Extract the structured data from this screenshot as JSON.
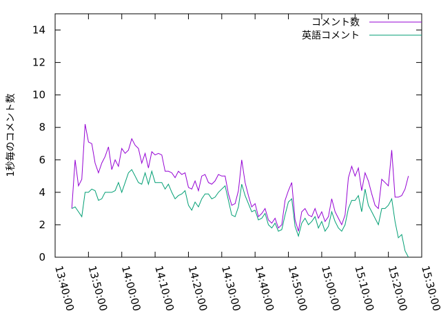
{
  "chart_data": {
    "type": "line",
    "title": "",
    "xlabel": "",
    "ylabel": "1秒毎のコメント数",
    "ylim": [
      0,
      15
    ],
    "yticks": [
      0,
      2,
      4,
      6,
      8,
      10,
      12,
      14
    ],
    "xlim": [
      "13:40:00",
      "15:30:00"
    ],
    "xticks": [
      "13:40:00",
      "13:50:00",
      "14:00:00",
      "14:10:00",
      "14:20:00",
      "14:30:00",
      "14:40:00",
      "14:50:00",
      "15:00:00",
      "15:10:00",
      "15:20:00",
      "15:30:00"
    ],
    "grid": false,
    "legend": "top-right",
    "x": [
      "13:45:00",
      "13:46:00",
      "13:47:00",
      "13:48:00",
      "13:49:00",
      "13:50:00",
      "13:51:00",
      "13:52:00",
      "13:53:00",
      "13:54:00",
      "13:55:00",
      "13:56:00",
      "13:57:00",
      "13:58:00",
      "13:59:00",
      "14:00:00",
      "14:01:00",
      "14:02:00",
      "14:03:00",
      "14:04:00",
      "14:05:00",
      "14:06:00",
      "14:07:00",
      "14:08:00",
      "14:09:00",
      "14:10:00",
      "14:11:00",
      "14:12:00",
      "14:13:00",
      "14:14:00",
      "14:15:00",
      "14:16:00",
      "14:17:00",
      "14:18:00",
      "14:19:00",
      "14:20:00",
      "14:21:00",
      "14:22:00",
      "14:23:00",
      "14:24:00",
      "14:25:00",
      "14:26:00",
      "14:27:00",
      "14:28:00",
      "14:29:00",
      "14:30:00",
      "14:31:00",
      "14:32:00",
      "14:33:00",
      "14:34:00",
      "14:35:00",
      "14:36:00",
      "14:37:00",
      "14:38:00",
      "14:39:00",
      "14:40:00",
      "14:41:00",
      "14:42:00",
      "14:43:00",
      "14:44:00",
      "14:45:00",
      "14:46:00",
      "14:47:00",
      "14:48:00",
      "14:49:00",
      "14:50:00",
      "14:51:00",
      "14:52:00",
      "14:53:00",
      "14:54:00",
      "14:55:00",
      "14:56:00",
      "14:57:00",
      "14:58:00",
      "14:59:00",
      "15:00:00",
      "15:01:00",
      "15:02:00",
      "15:03:00",
      "15:04:00",
      "15:05:00",
      "15:06:00",
      "15:07:00",
      "15:08:00",
      "15:09:00",
      "15:10:00",
      "15:11:00",
      "15:12:00",
      "15:13:00",
      "15:14:00",
      "15:15:00",
      "15:16:00",
      "15:17:00",
      "15:18:00",
      "15:19:00",
      "15:20:00",
      "15:21:00",
      "15:22:00",
      "15:23:00",
      "15:24:00",
      "15:25:00",
      "15:26:00"
    ],
    "series": [
      {
        "name": "コメント数",
        "color": "#9400d3",
        "values": [
          3.0,
          6.0,
          4.4,
          4.8,
          8.2,
          7.1,
          7.0,
          5.8,
          5.2,
          5.8,
          6.2,
          6.8,
          5.4,
          6.0,
          5.6,
          6.7,
          6.4,
          6.6,
          7.3,
          6.9,
          6.7,
          5.8,
          6.4,
          5.5,
          6.5,
          6.3,
          6.4,
          6.3,
          5.3,
          5.3,
          5.2,
          4.9,
          5.3,
          5.1,
          5.2,
          4.3,
          4.2,
          4.7,
          4.1,
          5.0,
          5.1,
          4.6,
          4.5,
          4.7,
          5.1,
          5.0,
          5.0,
          3.9,
          3.2,
          3.3,
          4.1,
          6.0,
          4.6,
          3.8,
          3.1,
          3.3,
          2.5,
          2.7,
          3.0,
          2.3,
          2.1,
          2.4,
          1.8,
          2.0,
          3.5,
          4.1,
          4.6,
          2.3,
          1.6,
          2.8,
          3.0,
          2.6,
          2.5,
          3.0,
          2.4,
          2.8,
          2.2,
          2.5,
          3.6,
          2.8,
          2.4,
          2.0,
          2.6,
          4.9,
          5.6,
          5.0,
          5.5,
          4.1,
          5.2,
          4.7,
          3.9,
          3.2,
          3.0,
          4.8,
          4.6,
          4.4,
          6.6,
          3.7,
          3.7,
          3.8,
          4.2,
          5.0
        ]
      },
      {
        "name": "英語コメント",
        "color": "#009e73",
        "values": [
          3.0,
          3.1,
          2.8,
          2.5,
          4.0,
          4.0,
          4.2,
          4.1,
          3.5,
          3.6,
          4.0,
          4.0,
          4.0,
          4.1,
          4.6,
          4.0,
          4.6,
          5.2,
          5.4,
          5.0,
          4.6,
          4.5,
          5.2,
          4.5,
          5.3,
          4.6,
          4.6,
          4.6,
          4.2,
          4.5,
          4.0,
          3.6,
          3.8,
          3.9,
          4.1,
          3.2,
          2.9,
          3.4,
          3.1,
          3.6,
          3.9,
          3.9,
          3.6,
          3.7,
          4.0,
          4.2,
          4.4,
          3.5,
          2.6,
          2.5,
          3.1,
          4.5,
          3.8,
          3.3,
          2.8,
          2.9,
          2.3,
          2.4,
          2.7,
          2.0,
          1.8,
          2.1,
          1.6,
          1.7,
          2.6,
          3.4,
          3.6,
          1.9,
          1.3,
          2.1,
          2.4,
          2.0,
          2.2,
          2.5,
          1.8,
          2.2,
          1.6,
          1.9,
          2.8,
          2.2,
          1.8,
          1.6,
          2.0,
          3.0,
          3.5,
          3.5,
          3.8,
          2.8,
          4.2,
          3.2,
          2.8,
          2.4,
          2.0,
          3.0,
          3.0,
          3.2,
          3.6,
          2.2,
          1.2,
          1.4,
          0.4,
          0.0
        ]
      }
    ]
  }
}
